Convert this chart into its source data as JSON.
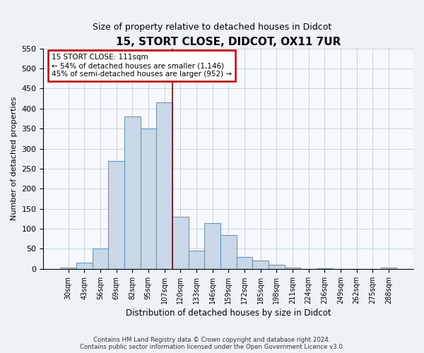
{
  "title": "15, STORT CLOSE, DIDCOT, OX11 7UR",
  "subtitle": "Size of property relative to detached houses in Didcot",
  "xlabel": "Distribution of detached houses by size in Didcot",
  "ylabel": "Number of detached properties",
  "categories": [
    "30sqm",
    "43sqm",
    "56sqm",
    "69sqm",
    "82sqm",
    "95sqm",
    "107sqm",
    "120sqm",
    "133sqm",
    "146sqm",
    "159sqm",
    "172sqm",
    "185sqm",
    "198sqm",
    "211sqm",
    "224sqm",
    "236sqm",
    "249sqm",
    "262sqm",
    "275sqm",
    "288sqm"
  ],
  "bar_values": [
    3,
    15,
    50,
    270,
    380,
    350,
    415,
    130,
    45,
    115,
    85,
    30,
    20,
    10,
    3,
    0,
    2,
    0,
    0,
    0,
    3
  ],
  "bar_color": "#c8d8e8",
  "bar_edge_color": "#6699bb",
  "vline_pos": 6.5,
  "vline_color": "#8b0000",
  "annotation_box_color": "#ffffff",
  "annotation_border_color": "#cc0000",
  "annotation_text_line1": "15 STORT CLOSE: 111sqm",
  "annotation_text_line2": "← 54% of detached houses are smaller (1,146)",
  "annotation_text_line3": "45% of semi-detached houses are larger (952) →",
  "ylim": [
    0,
    550
  ],
  "yticks": [
    0,
    50,
    100,
    150,
    200,
    250,
    300,
    350,
    400,
    450,
    500,
    550
  ],
  "footer_line1": "Contains HM Land Registry data © Crown copyright and database right 2024.",
  "footer_line2": "Contains public sector information licensed under the Open Government Licence v3.0.",
  "bg_color": "#eef2f7",
  "plot_bg_color": "#f5f8fc",
  "title_fontsize": 11,
  "subtitle_fontsize": 9,
  "xlabel_fontsize": 8.5,
  "ylabel_fontsize": 8,
  "tick_fontsize": 7,
  "footer_fontsize": 6.2,
  "ann_fontsize": 7.5
}
